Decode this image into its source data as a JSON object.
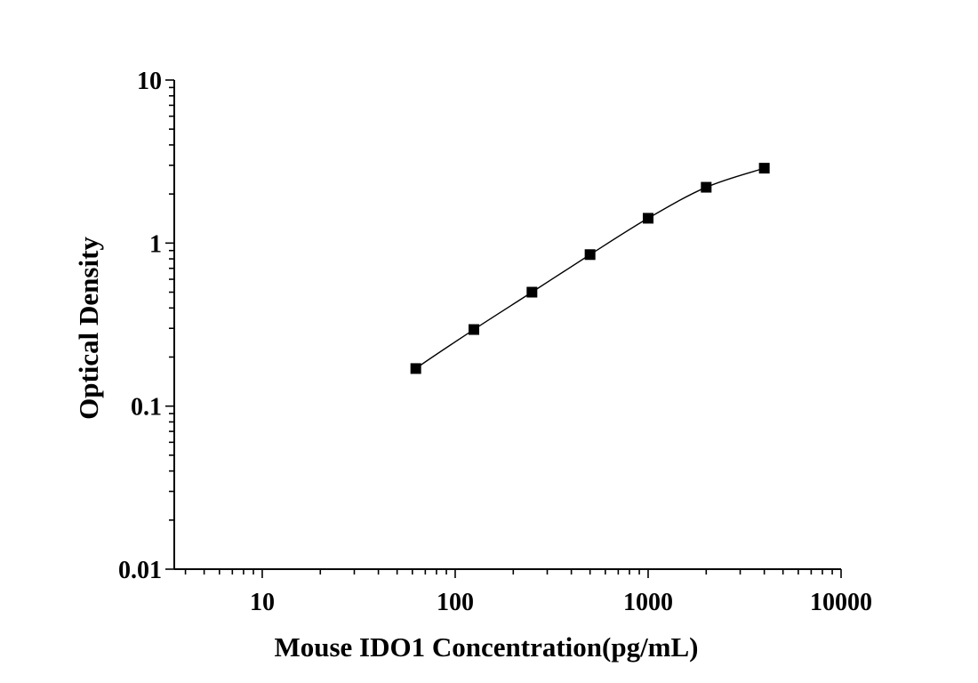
{
  "chart_data": {
    "type": "scatter",
    "x_scale": "log",
    "y_scale": "log",
    "xlim": [
      3.5,
      10000
    ],
    "ylim": [
      0.01,
      10
    ],
    "xlabel": "Mouse IDO1 Concentration(pg/mL)",
    "ylabel": "Optical Density",
    "x_ticks": [
      10,
      100,
      1000,
      10000
    ],
    "x_tick_labels": [
      "10",
      "100",
      "1000",
      "10000"
    ],
    "y_ticks": [
      0.01,
      0.1,
      1,
      10
    ],
    "y_tick_labels": [
      "0.01",
      "0.1",
      "1",
      "10"
    ],
    "grid": false,
    "series": [
      {
        "x": [
          62.5,
          125,
          250,
          500,
          1000,
          2000,
          4000
        ],
        "y": [
          0.17,
          0.295,
          0.5,
          0.85,
          1.42,
          2.2,
          2.88
        ],
        "fit_curve": true
      }
    ],
    "colors": {
      "marker": "#000000",
      "line": "#000000"
    }
  }
}
